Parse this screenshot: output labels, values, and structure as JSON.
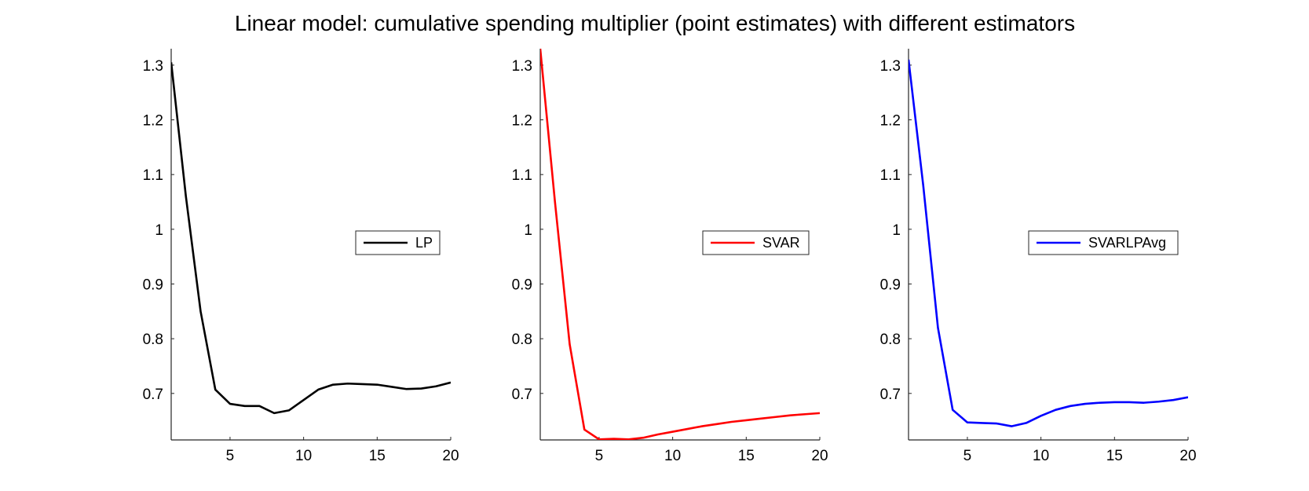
{
  "title": "Linear model: cumulative spending multiplier (point estimates) with different estimators",
  "chart_data": [
    {
      "type": "line",
      "series": [
        {
          "name": "LP",
          "color": "#000000",
          "x": [
            1,
            2,
            3,
            4,
            5,
            6,
            7,
            8,
            9,
            10,
            11,
            12,
            13,
            14,
            15,
            16,
            17,
            18,
            19,
            20
          ],
          "values": [
            1.305,
            1.06,
            0.85,
            0.707,
            0.681,
            0.677,
            0.677,
            0.664,
            0.669,
            0.688,
            0.707,
            0.716,
            0.718,
            0.717,
            0.716,
            0.712,
            0.708,
            0.709,
            0.713,
            0.72
          ]
        }
      ],
      "xlim": [
        1,
        20
      ],
      "ylim": [
        0.615,
        1.33
      ],
      "xticks": [
        5,
        10,
        15,
        20
      ],
      "yticks": [
        0.7,
        0.8,
        0.9,
        1,
        1.1,
        1.2,
        1.3
      ],
      "xticklabels": [
        "5",
        "10",
        "15",
        "20"
      ],
      "yticklabels": [
        "0.7",
        "0.8",
        "0.9",
        "1",
        "1.1",
        "1.2",
        "1.3"
      ],
      "legend": {
        "location": "right",
        "entries": [
          "LP"
        ]
      },
      "grid": false
    },
    {
      "type": "line",
      "series": [
        {
          "name": "SVAR",
          "color": "#ff0000",
          "x": [
            1,
            2,
            3,
            4,
            5,
            6,
            7,
            8,
            9,
            10,
            11,
            12,
            13,
            14,
            15,
            16,
            17,
            18,
            19,
            20
          ],
          "values": [
            1.33,
            1.05,
            0.79,
            0.634,
            0.616,
            0.617,
            0.616,
            0.619,
            0.625,
            0.63,
            0.635,
            0.64,
            0.644,
            0.648,
            0.651,
            0.654,
            0.657,
            0.66,
            0.662,
            0.664
          ]
        }
      ],
      "xlim": [
        1,
        20
      ],
      "ylim": [
        0.615,
        1.33
      ],
      "xticks": [
        5,
        10,
        15,
        20
      ],
      "yticks": [
        0.7,
        0.8,
        0.9,
        1,
        1.1,
        1.2,
        1.3
      ],
      "xticklabels": [
        "5",
        "10",
        "15",
        "20"
      ],
      "yticklabels": [
        "0.7",
        "0.8",
        "0.9",
        "1",
        "1.1",
        "1.2",
        "1.3"
      ],
      "legend": {
        "location": "right",
        "entries": [
          "SVAR"
        ]
      },
      "grid": false
    },
    {
      "type": "line",
      "series": [
        {
          "name": "SVARLPAvg",
          "color": "#0000ff",
          "x": [
            1,
            2,
            3,
            4,
            5,
            6,
            7,
            8,
            9,
            10,
            11,
            12,
            13,
            14,
            15,
            16,
            17,
            18,
            19,
            20
          ],
          "values": [
            1.31,
            1.08,
            0.82,
            0.67,
            0.647,
            0.646,
            0.645,
            0.64,
            0.646,
            0.659,
            0.67,
            0.677,
            0.681,
            0.683,
            0.684,
            0.684,
            0.683,
            0.685,
            0.688,
            0.693
          ]
        }
      ],
      "xlim": [
        1,
        20
      ],
      "ylim": [
        0.615,
        1.33
      ],
      "xticks": [
        5,
        10,
        15,
        20
      ],
      "yticks": [
        0.7,
        0.8,
        0.9,
        1,
        1.1,
        1.2,
        1.3
      ],
      "xticklabels": [
        "5",
        "10",
        "15",
        "20"
      ],
      "yticklabels": [
        "0.7",
        "0.8",
        "0.9",
        "1",
        "1.1",
        "1.2",
        "1.3"
      ],
      "legend": {
        "location": "right",
        "entries": [
          "SVARLPAvg"
        ]
      },
      "grid": false
    }
  ]
}
